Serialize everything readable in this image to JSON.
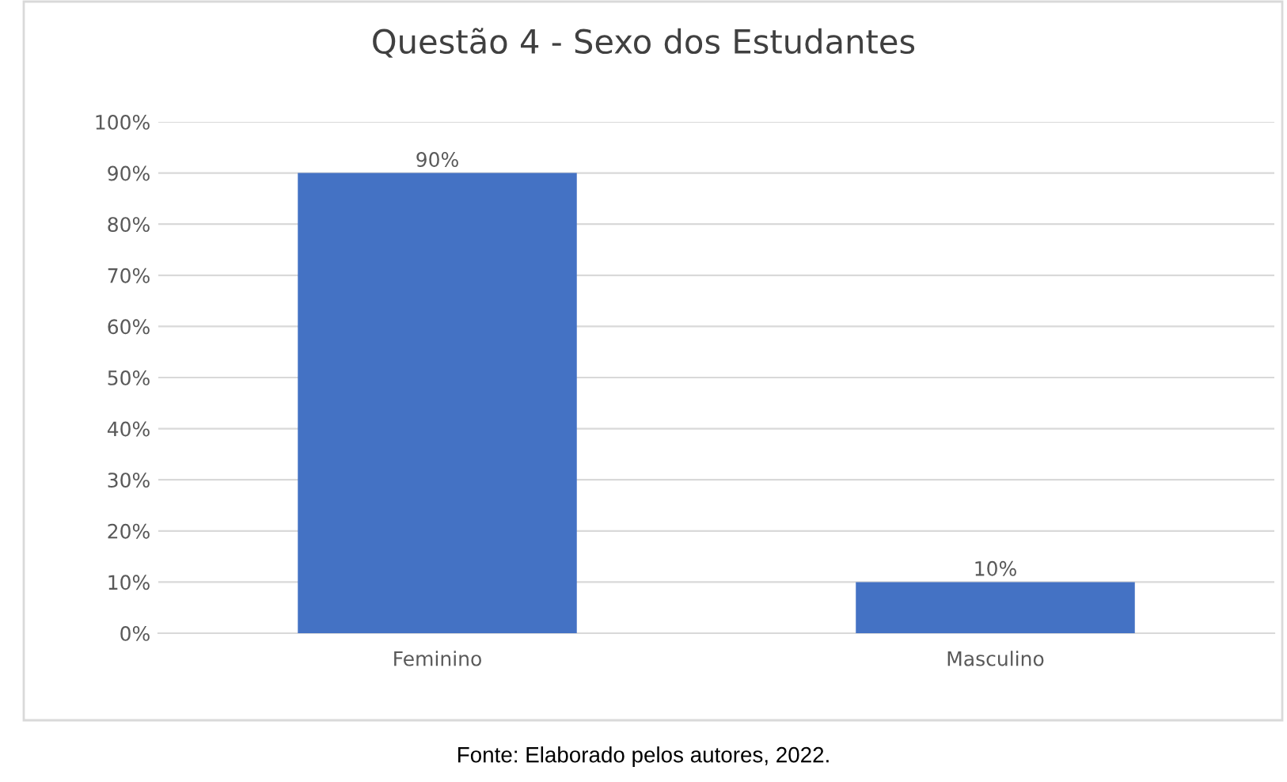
{
  "chart_data": {
    "type": "bar",
    "title": "Questão 4 - Sexo dos Estudantes",
    "categories": [
      "Feminino",
      "Masculino"
    ],
    "values": [
      90,
      10
    ],
    "value_labels": [
      "90%",
      "10%"
    ],
    "color": "#4472c4",
    "ylim": [
      0,
      100
    ],
    "yticks": [
      {
        "value": 0,
        "label": "0%"
      },
      {
        "value": 10,
        "label": "10%"
      },
      {
        "value": 20,
        "label": "20%"
      },
      {
        "value": 30,
        "label": "30%"
      },
      {
        "value": 40,
        "label": "40%"
      },
      {
        "value": 50,
        "label": "50%"
      },
      {
        "value": 60,
        "label": "60%"
      },
      {
        "value": 70,
        "label": "70%"
      },
      {
        "value": 80,
        "label": "80%"
      },
      {
        "value": 90,
        "label": "90%"
      },
      {
        "value": 100,
        "label": "100%"
      }
    ],
    "grid": "y",
    "legend": false,
    "annotations": [
      "Fonte: Elaborado pelos autores, 2022."
    ]
  }
}
